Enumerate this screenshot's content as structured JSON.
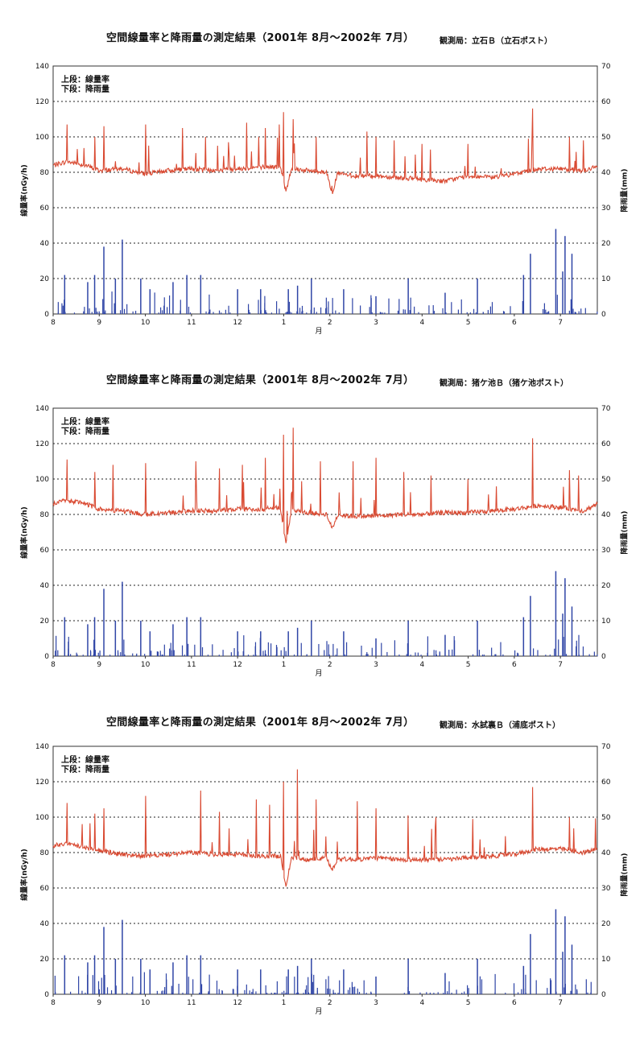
{
  "chart_data": [
    {
      "type": "line",
      "title": "空間線量率と降雨量の測定結果（2001年 8月～2002年 7月）",
      "station": "観測局：立石Ｂ（立石ポスト）",
      "legend": [
        "上段：線量率",
        "下段：降雨量"
      ],
      "xlabel": "月",
      "x_ticks": [
        "8",
        "9",
        "10",
        "11",
        "12",
        "1",
        "2",
        "3",
        "4",
        "5",
        "6",
        "7"
      ],
      "ylabel_left": "線量率(nGy/h)",
      "ylabel_right": "降雨量(mm)",
      "ylim_left": [
        0,
        140
      ],
      "ylim_right": [
        0,
        70
      ],
      "yticks_left": [
        0,
        20,
        40,
        60,
        80,
        100,
        120,
        140
      ],
      "yticks_right": [
        0,
        10,
        20,
        30,
        40,
        50,
        60,
        70
      ],
      "grid": "dashed horizontal",
      "series": [
        {
          "name": "線量率",
          "color": "#d94a32",
          "axis": "left",
          "x": [
            0,
            0.3,
            0.7,
            1,
            1.5,
            2,
            2.5,
            3,
            3.5,
            4,
            4.5,
            5,
            5.5,
            6,
            6.5,
            7,
            7.5,
            8,
            8.5,
            9,
            9.5,
            10,
            10.5,
            11,
            11.5,
            11.8
          ],
          "y": [
            84,
            86,
            84,
            81,
            82,
            79,
            81,
            82,
            81,
            82,
            83,
            83,
            81,
            80,
            78,
            78,
            77,
            76,
            75,
            78,
            77,
            79,
            82,
            82,
            81,
            83
          ],
          "spikes": [
            [
              0.3,
              107
            ],
            [
              0.9,
              100
            ],
            [
              1.1,
              106
            ],
            [
              2,
              107
            ],
            [
              2.8,
              105
            ],
            [
              3.3,
              100
            ],
            [
              3.8,
              97
            ],
            [
              4.2,
              108
            ],
            [
              4.6,
              105
            ],
            [
              4.9,
              107
            ],
            [
              5,
              114
            ],
            [
              5.2,
              110
            ],
            [
              5.7,
              100
            ],
            [
              6.8,
              103
            ],
            [
              7,
              100
            ],
            [
              7.4,
              98
            ],
            [
              8,
              96
            ],
            [
              9,
              96
            ],
            [
              10.3,
              99
            ],
            [
              10.4,
              116
            ],
            [
              11.2,
              100
            ],
            [
              11.5,
              98
            ]
          ],
          "dips": [
            [
              5.05,
              69
            ],
            [
              6.05,
              68
            ]
          ]
        },
        {
          "name": "降雨量",
          "color": "#2f45a6",
          "axis": "right",
          "x": [
            0.25,
            0.75,
            0.9,
            1.1,
            1.35,
            1.5,
            1.9,
            2.1,
            2.6,
            2.9,
            3.2,
            4,
            4.5,
            5.1,
            5.3,
            5.6,
            6.3,
            7,
            7.7,
            8.5,
            9.2,
            10.2,
            10.35,
            10.9,
            11.05,
            11.1,
            11.25
          ],
          "y": [
            11,
            9,
            11,
            19,
            10,
            21,
            10,
            7,
            9,
            11,
            11,
            7,
            7,
            7,
            8,
            10,
            7,
            5,
            10,
            6,
            10,
            11,
            17,
            24,
            12,
            22,
            17
          ]
        }
      ]
    },
    {
      "type": "line",
      "title": "空間線量率と降雨量の測定結果（2001年 8月～2002年 7月）",
      "station": "観測局：猪ケ池Ｂ（猪ケ池ポスト）",
      "legend": [
        "上段：線量率",
        "下段：降雨量"
      ],
      "xlabel": "月",
      "x_ticks": [
        "8",
        "9",
        "10",
        "11",
        "12",
        "1",
        "2",
        "3",
        "4",
        "5",
        "6",
        "7"
      ],
      "ylabel_left": "線量率(nGy/h)",
      "ylabel_right": "降雨量(mm)",
      "ylim_left": [
        0,
        140
      ],
      "ylim_right": [
        0,
        70
      ],
      "yticks_left": [
        0,
        20,
        40,
        60,
        80,
        100,
        120,
        140
      ],
      "yticks_right": [
        0,
        10,
        20,
        30,
        40,
        50,
        60,
        70
      ],
      "grid": "dashed horizontal",
      "series": [
        {
          "name": "線量率",
          "color": "#d94a32",
          "axis": "left",
          "x": [
            0,
            0.3,
            0.7,
            1,
            1.5,
            2,
            2.5,
            3,
            3.5,
            4,
            4.5,
            5,
            5.5,
            6,
            6.5,
            7,
            7.5,
            8,
            8.5,
            9,
            9.5,
            10,
            10.5,
            11,
            11.5,
            11.8
          ],
          "y": [
            86,
            88,
            86,
            83,
            82,
            80,
            81,
            82,
            82,
            83,
            83,
            84,
            81,
            80,
            79,
            79,
            80,
            80,
            81,
            81,
            82,
            83,
            85,
            84,
            82,
            86
          ],
          "spikes": [
            [
              0.3,
              111
            ],
            [
              0.9,
              104
            ],
            [
              1.3,
              108
            ],
            [
              2,
              109
            ],
            [
              3.1,
              110
            ],
            [
              3.6,
              106
            ],
            [
              4.1,
              108
            ],
            [
              4.6,
              112
            ],
            [
              5,
              125
            ],
            [
              5.2,
              129
            ],
            [
              5.8,
              110
            ],
            [
              6.5,
              110
            ],
            [
              7,
              112
            ],
            [
              7.6,
              104
            ],
            [
              8.2,
              102
            ],
            [
              9,
              100
            ],
            [
              10.4,
              123
            ],
            [
              11.2,
              105
            ],
            [
              11.4,
              102
            ]
          ],
          "dips": [
            [
              5.05,
              63
            ],
            [
              6.05,
              72
            ]
          ]
        },
        {
          "name": "降雨量",
          "color": "#2f45a6",
          "axis": "right",
          "x": [
            0.25,
            0.75,
            0.9,
            1.1,
            1.35,
            1.5,
            1.9,
            2.1,
            2.6,
            2.9,
            3.2,
            4,
            4.5,
            5.1,
            5.3,
            5.6,
            6.3,
            7,
            7.7,
            8.5,
            9.2,
            10.2,
            10.35,
            10.9,
            11.05,
            11.1,
            11.25
          ],
          "y": [
            11,
            9,
            11,
            19,
            10,
            21,
            10,
            7,
            9,
            11,
            11,
            7,
            7,
            7,
            8,
            10,
            7,
            5,
            10,
            6,
            10,
            11,
            17,
            24,
            12,
            22,
            14
          ]
        }
      ]
    },
    {
      "type": "line",
      "title": "空間線量率と降雨量の測定結果（2001年 8月～2002年 7月）",
      "station": "観測局：水試裏Ｂ（浦底ポスト）",
      "legend": [
        "上段：線量率",
        "下段：降雨量"
      ],
      "xlabel": "月",
      "x_ticks": [
        "8",
        "9",
        "10",
        "11",
        "12",
        "1",
        "2",
        "3",
        "4",
        "5",
        "6",
        "7"
      ],
      "ylabel_left": "線量率(nGy/h)",
      "ylabel_right": "降雨量(mm)",
      "ylim_left": [
        0,
        140
      ],
      "ylim_right": [
        0,
        70
      ],
      "yticks_left": [
        0,
        20,
        40,
        60,
        80,
        100,
        120,
        140
      ],
      "yticks_right": [
        0,
        10,
        20,
        30,
        40,
        50,
        60,
        70
      ],
      "grid": "dashed horizontal",
      "series": [
        {
          "name": "線量率",
          "color": "#d94a32",
          "axis": "left",
          "x": [
            0,
            0.3,
            0.7,
            1,
            1.5,
            2,
            2.5,
            3,
            3.5,
            4,
            4.5,
            5,
            5.5,
            6,
            6.5,
            7,
            7.5,
            8,
            8.5,
            9,
            9.5,
            10,
            10.5,
            11,
            11.5,
            11.8
          ],
          "y": [
            84,
            85,
            83,
            81,
            79,
            78,
            79,
            80,
            79,
            79,
            78,
            78,
            76,
            77,
            76,
            77,
            76,
            76,
            76,
            77,
            78,
            79,
            82,
            82,
            80,
            82
          ],
          "spikes": [
            [
              0.3,
              108
            ],
            [
              0.9,
              102
            ],
            [
              1.1,
              105
            ],
            [
              2,
              112
            ],
            [
              3.2,
              115
            ],
            [
              3.6,
              103
            ],
            [
              4.4,
              110
            ],
            [
              4.7,
              107
            ],
            [
              5,
              120
            ],
            [
              5.3,
              127
            ],
            [
              5.7,
              110
            ],
            [
              6.6,
              109
            ],
            [
              7,
              105
            ],
            [
              7.7,
              101
            ],
            [
              8.3,
              100
            ],
            [
              9.1,
              99
            ],
            [
              10.4,
              117
            ],
            [
              11.2,
              100
            ]
          ],
          "dips": [
            [
              5.05,
              61
            ],
            [
              6.05,
              70
            ]
          ]
        },
        {
          "name": "降雨量",
          "color": "#2f45a6",
          "axis": "right",
          "x": [
            0.25,
            0.75,
            0.9,
            1.1,
            1.35,
            1.5,
            1.9,
            2.1,
            2.6,
            2.9,
            3.2,
            4,
            4.5,
            5.1,
            5.3,
            5.6,
            6.3,
            7,
            7.7,
            8.5,
            9.2,
            10.2,
            10.35,
            10.9,
            11.05,
            11.1,
            11.25
          ],
          "y": [
            11,
            9,
            11,
            19,
            10,
            21,
            10,
            7,
            9,
            11,
            11,
            7,
            7,
            7,
            8,
            10,
            7,
            5,
            10,
            6,
            10,
            8,
            17,
            24,
            12,
            22,
            14
          ]
        }
      ]
    }
  ]
}
